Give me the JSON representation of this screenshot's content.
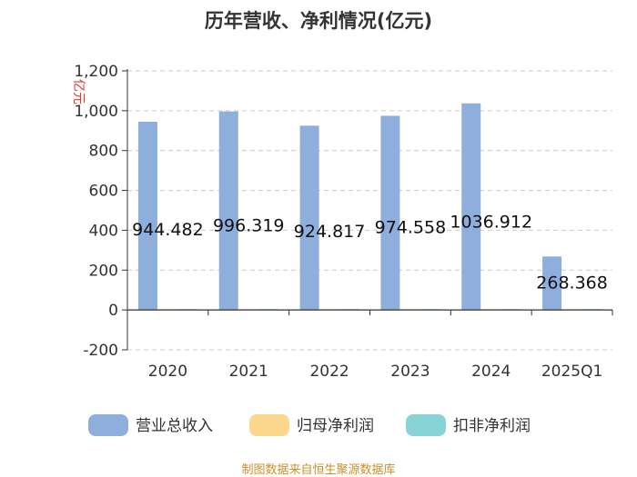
{
  "chart_data": {
    "type": "bar",
    "title": "历年营收、净利情况(亿元)",
    "ylabel": "亿元",
    "categories": [
      "2020",
      "2021",
      "2022",
      "2023",
      "2024",
      "2025Q1"
    ],
    "ylim": [
      -200,
      1200
    ],
    "yticks": [
      -200,
      0,
      200,
      400,
      600,
      800,
      1000,
      1200
    ],
    "ytick_labels": [
      "-200",
      "0",
      "200",
      "400",
      "600",
      "800",
      "1,000",
      "1,200"
    ],
    "grid": true,
    "legend_position": "bottom",
    "series": [
      {
        "name": "营业总收入",
        "color": "#8eaedc",
        "values": [
          944.482,
          996.319,
          924.817,
          974.558,
          1036.912,
          268.368
        ],
        "labels": [
          "944.482",
          "996.319",
          "924.817",
          "974.558",
          "1036.912",
          "268.368"
        ]
      },
      {
        "name": "归母净利润",
        "color": "#fcd88e",
        "values": [
          0,
          0,
          0,
          0,
          0,
          0
        ]
      },
      {
        "name": "扣非净利润",
        "color": "#87d4d6",
        "values": [
          0,
          0,
          0,
          0,
          0,
          0
        ]
      }
    ]
  },
  "source_text": "制图数据来自恒生聚源数据库"
}
